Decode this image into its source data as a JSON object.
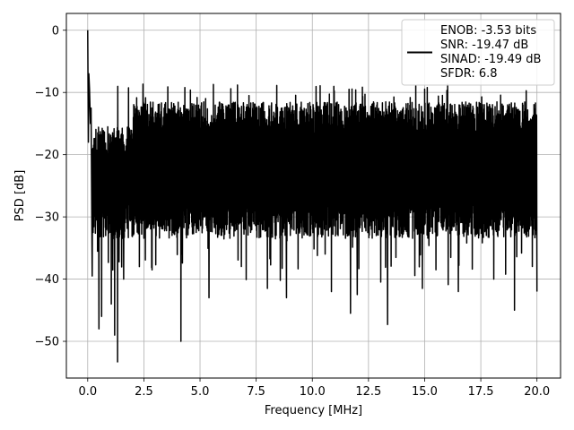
{
  "chart_data": {
    "type": "line",
    "title": "",
    "xlabel": "Frequency [MHz]",
    "ylabel": "PSD [dB]",
    "xlim": [
      -0.95,
      21.05
    ],
    "ylim": [
      -55.9,
      2.7
    ],
    "x_ticks": [
      0.0,
      2.5,
      5.0,
      7.5,
      10.0,
      12.5,
      15.0,
      17.5,
      20.0
    ],
    "x_tick_labels": [
      "0.0",
      "2.5",
      "5.0",
      "7.5",
      "10.0",
      "12.5",
      "15.0",
      "17.5",
      "20.0"
    ],
    "y_ticks": [
      0,
      -10,
      -20,
      -30,
      -40,
      -50
    ],
    "y_tick_labels": [
      "0",
      "−10",
      "−20",
      "−30",
      "−40",
      "−50"
    ],
    "grid": true,
    "legend_position": "top-right",
    "legend_entries": [
      "ENOB: -3.53 bits",
      "SNR: -19.47 dB",
      "SINAD: -19.49 dB",
      "SFDR: 6.8"
    ],
    "line_color": "#000000",
    "series": [
      {
        "x_start": 0.0,
        "x_end": 20.0,
        "dc_peak": [
          0.0,
          0.0
        ],
        "features": [
          [
            0.03,
            -18.0
          ],
          [
            0.05,
            -7.0
          ],
          [
            0.08,
            -9.5
          ],
          [
            0.12,
            -15.0
          ],
          [
            0.15,
            -12.5
          ],
          [
            0.2,
            -39.5
          ],
          [
            0.35,
            -31.0
          ],
          [
            0.5,
            -48.0
          ],
          [
            0.62,
            -46.0
          ],
          [
            0.8,
            -33.0
          ],
          [
            1.05,
            -44.0
          ],
          [
            1.2,
            -49.0
          ],
          [
            1.33,
            -53.3
          ],
          [
            1.6,
            -40.0
          ],
          [
            2.3,
            -38.0
          ],
          [
            4.15,
            -50.0
          ],
          [
            5.4,
            -43.0
          ],
          [
            8.0,
            -41.5
          ],
          [
            8.85,
            -43.0
          ],
          [
            10.85,
            -42.0
          ],
          [
            11.7,
            -45.5
          ],
          [
            12.0,
            -42.5
          ],
          [
            13.35,
            -47.3
          ],
          [
            14.9,
            -41.5
          ],
          [
            16.5,
            -42.0
          ],
          [
            19.0,
            -45.0
          ],
          [
            20.0,
            -42.0
          ]
        ],
        "noise_floor": {
          "mean": -21.0,
          "upper_envelope_early": -15.5,
          "upper_envelope": -11.5,
          "lower_typical": -31.5,
          "peak_upper": -8.5
        }
      }
    ]
  }
}
